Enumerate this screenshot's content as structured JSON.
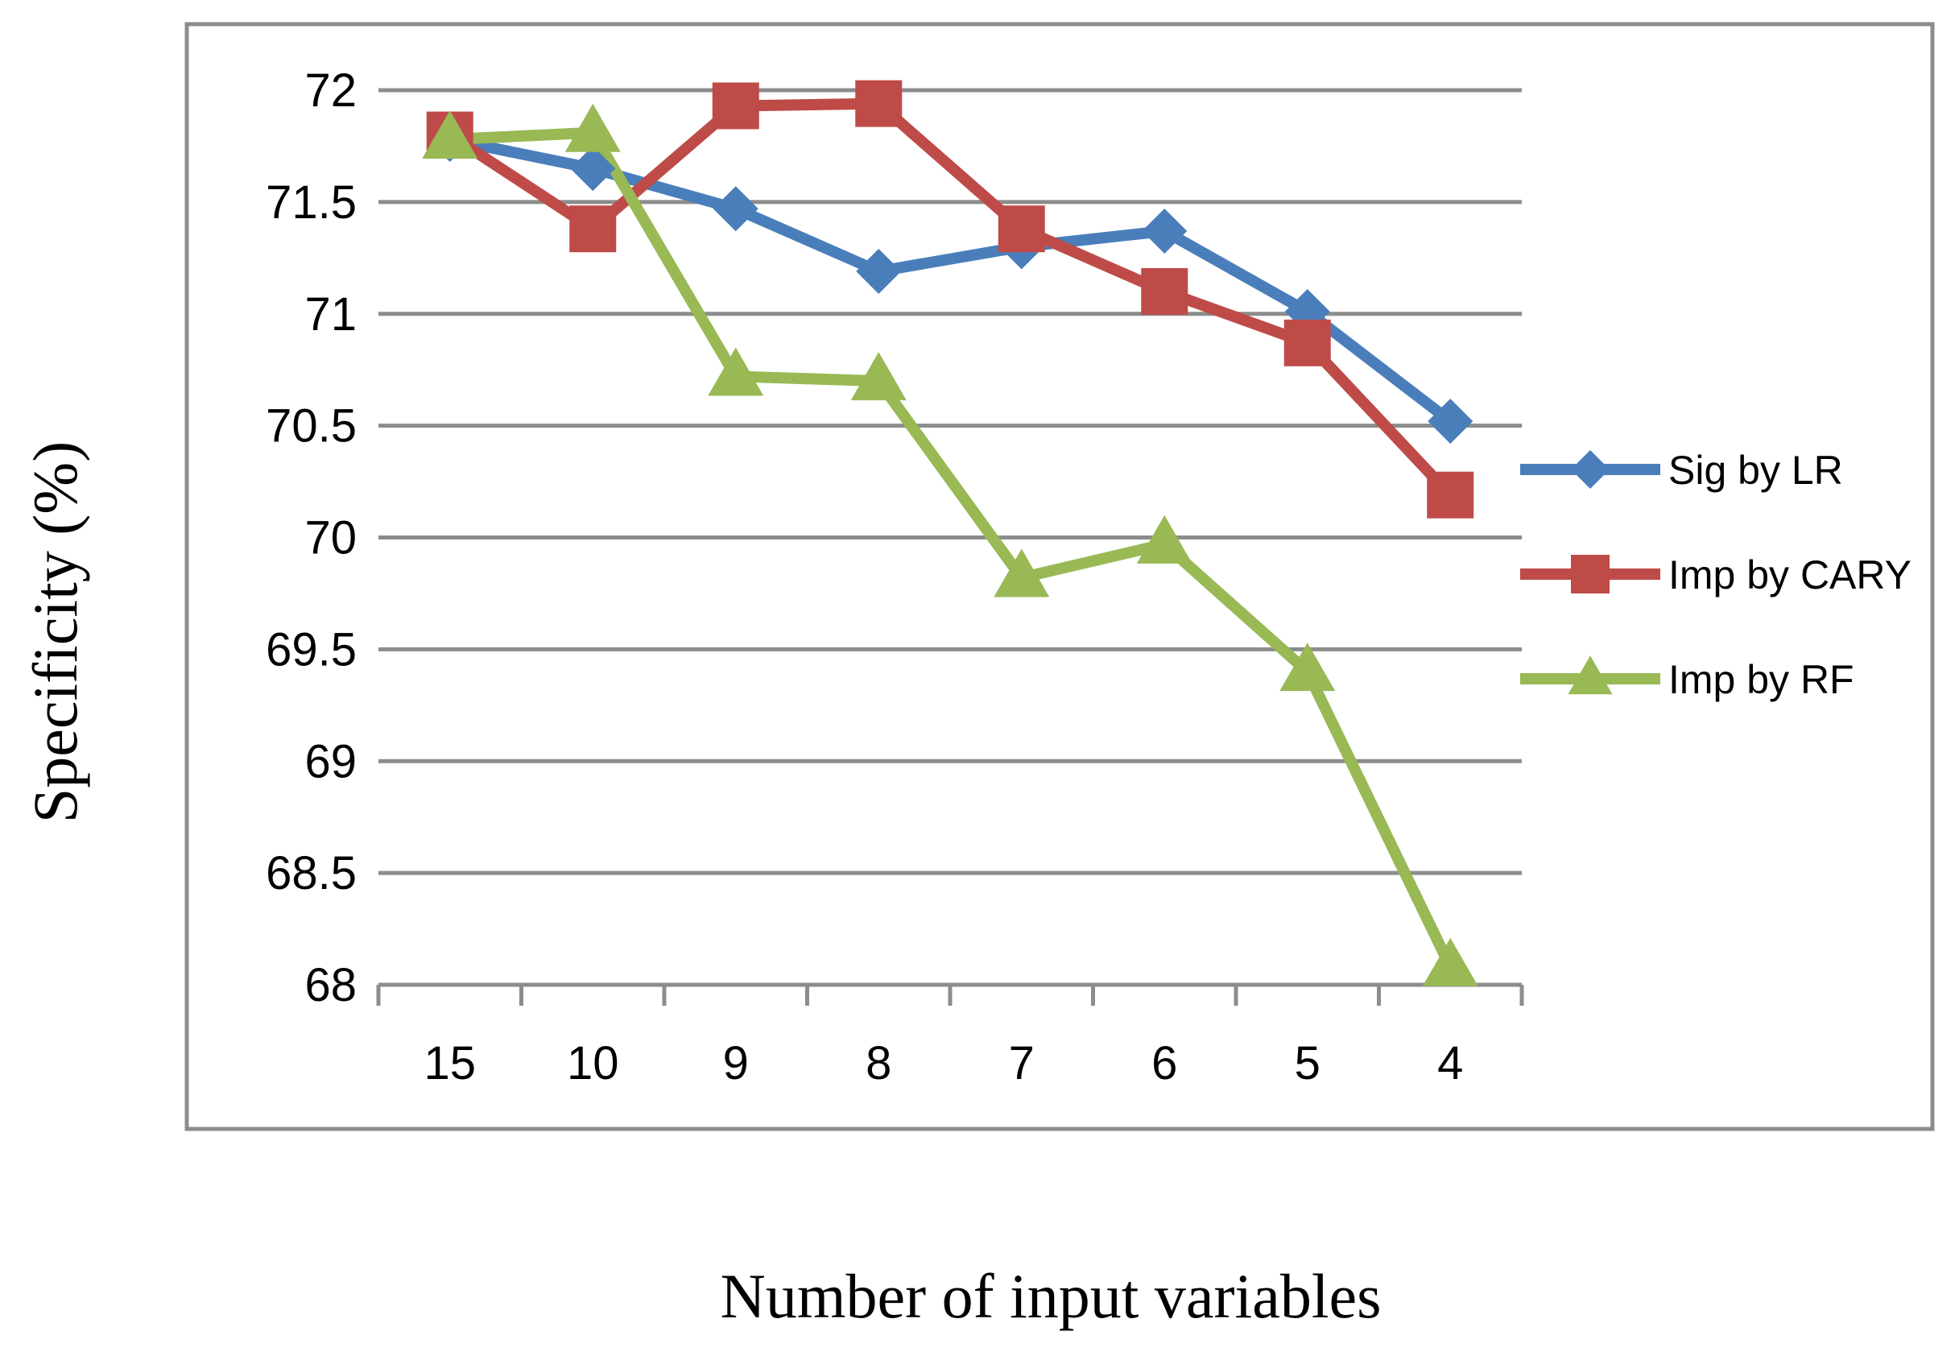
{
  "chart_data": {
    "type": "line",
    "title": "",
    "xlabel": "Number of input variables",
    "ylabel": "Specificity (%)",
    "categories": [
      "15",
      "10",
      "9",
      "8",
      "7",
      "6",
      "5",
      "4"
    ],
    "ylim": [
      68,
      72
    ],
    "ytick_step": 0.5,
    "grid": "horizontal",
    "legend_position": "right",
    "series": [
      {
        "name": "Sig by LR",
        "color": "#4a7ebb",
        "marker": "diamond",
        "values": [
          71.78,
          71.65,
          71.47,
          71.19,
          71.3,
          71.37,
          71.01,
          70.52
        ]
      },
      {
        "name": "Imp by CARY",
        "color": "#be4b48",
        "marker": "square",
        "values": [
          71.8,
          71.38,
          71.93,
          71.94,
          71.38,
          71.1,
          70.87,
          70.19
        ]
      },
      {
        "name": "Imp by RF",
        "color": "#98b954",
        "marker": "triangle",
        "values": [
          71.78,
          71.81,
          70.72,
          70.7,
          69.82,
          69.97,
          69.4,
          68.08
        ]
      }
    ]
  }
}
